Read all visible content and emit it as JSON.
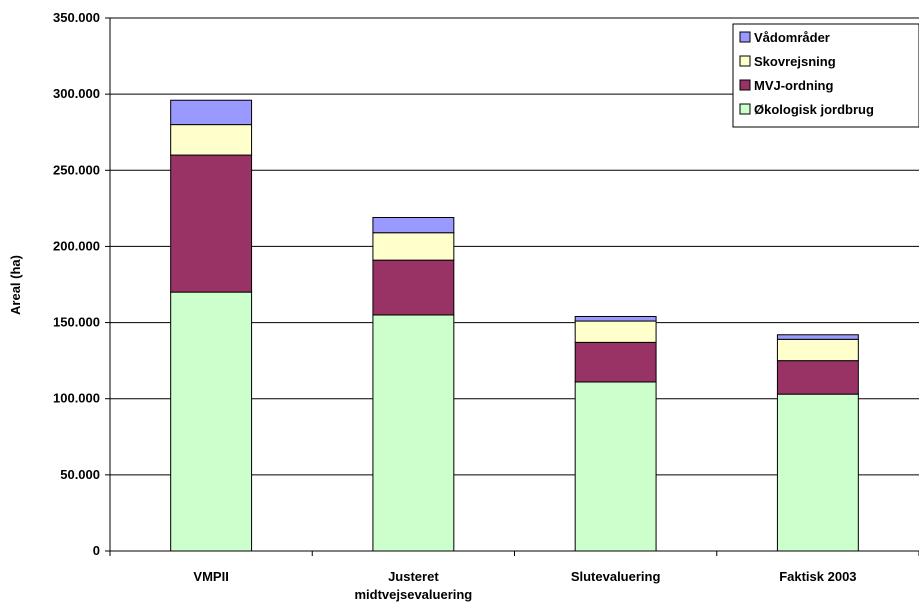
{
  "chart_data": {
    "type": "bar",
    "stacked": true,
    "categories": [
      [
        "VMPII"
      ],
      [
        "Justeret",
        "midtvejsevaluering"
      ],
      [
        "Slutevaluering"
      ],
      [
        "Faktisk 2003"
      ]
    ],
    "series": [
      {
        "name": "Økologisk jordbrug",
        "color": "#ccffcc",
        "values": [
          170000,
          155000,
          111000,
          103000
        ]
      },
      {
        "name": "MVJ-ordning",
        "color": "#993366",
        "values": [
          90000,
          36000,
          26000,
          22000
        ]
      },
      {
        "name": "Skovrejsning",
        "color": "#ffffcc",
        "values": [
          20000,
          18000,
          14000,
          14000
        ]
      },
      {
        "name": "Vådområder",
        "color": "#9999ff",
        "values": [
          16000,
          10000,
          3000,
          3000
        ]
      }
    ],
    "ylabel": "Areal (ha)",
    "ylim": [
      0,
      350000
    ],
    "yticks": [
      0,
      50000,
      100000,
      150000,
      200000,
      250000,
      300000,
      350000
    ],
    "ytick_labels": [
      "0",
      "50.000",
      "100.000",
      "150.000",
      "200.000",
      "250.000",
      "300.000",
      "350.000"
    ],
    "grid": true,
    "legend_position": "top-right",
    "legend_order": [
      "Vådområder",
      "Skovrejsning",
      "MVJ-ordning",
      "Økologisk jordbrug"
    ]
  }
}
